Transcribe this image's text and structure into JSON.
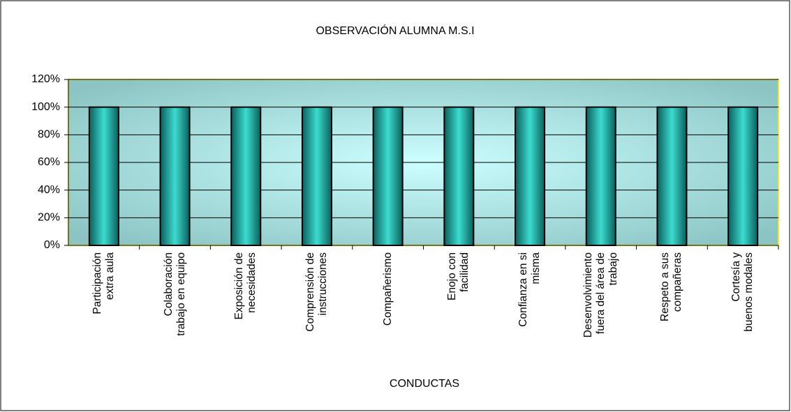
{
  "chart_data": {
    "type": "bar",
    "title": "OBSERVACIÓN ALUMNA M.S.I",
    "x_label": "CONDUCTAS",
    "categories": [
      "Participación\nextra aula",
      "Colaboración\ntrabajo en equipo",
      "Exposición de\nnecesidades",
      "Comprensión de\ninstrucciones",
      "Compañerismo",
      "Enojo con\nfacilidad",
      "Confianza en si\nmisma",
      "Desenvolvimiento\nfuera del área de\ntrabajo",
      "Respeto a sus\ncompañeras",
      "Cortesía y\nbuenos modales"
    ],
    "values": [
      100,
      100,
      100,
      100,
      100,
      100,
      100,
      100,
      100,
      100
    ],
    "color": "#1fa8a0",
    "ylim": [
      0,
      120
    ],
    "yticks": [
      {
        "value": 0,
        "label": "0%"
      },
      {
        "value": 20,
        "label": "20%"
      },
      {
        "value": 40,
        "label": "40%"
      },
      {
        "value": 60,
        "label": "60%"
      },
      {
        "value": 80,
        "label": "80%"
      },
      {
        "value": 100,
        "label": "100%"
      },
      {
        "value": 120,
        "label": "120%"
      }
    ],
    "grid": true
  }
}
